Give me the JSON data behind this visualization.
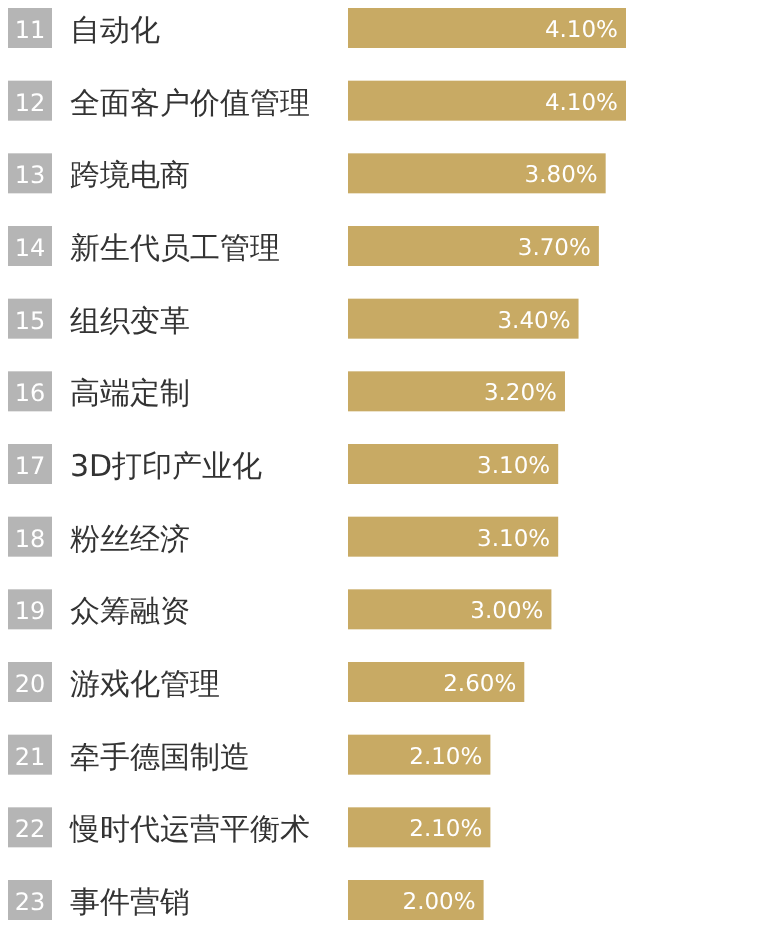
{
  "chart_data": {
    "type": "bar",
    "orientation": "horizontal",
    "categories": [
      "自动化",
      "全面客户价值管理",
      "跨境电商",
      "新生代员工管理",
      "组织变革",
      "高端定制",
      "3D打印产业化",
      "粉丝经济",
      "众筹融资",
      "游戏化管理",
      "牵手德国制造",
      "慢时代运营平衡术",
      "事件营销"
    ],
    "values": [
      4.1,
      4.1,
      3.8,
      3.7,
      3.4,
      3.2,
      3.1,
      3.1,
      3.0,
      2.6,
      2.1,
      2.1,
      2.0
    ],
    "value_labels": [
      "4.10%",
      "4.10%",
      "3.80%",
      "3.70%",
      "3.40%",
      "3.20%",
      "3.10%",
      "3.10%",
      "3.00%",
      "2.60%",
      "2.10%",
      "2.10%",
      "2.00%"
    ],
    "color": "#c8aa64",
    "annotations": [
      "11",
      "12",
      "13",
      "14",
      "15",
      "16",
      "17",
      "18",
      "19",
      "20",
      "21",
      "22",
      "23"
    ]
  }
}
